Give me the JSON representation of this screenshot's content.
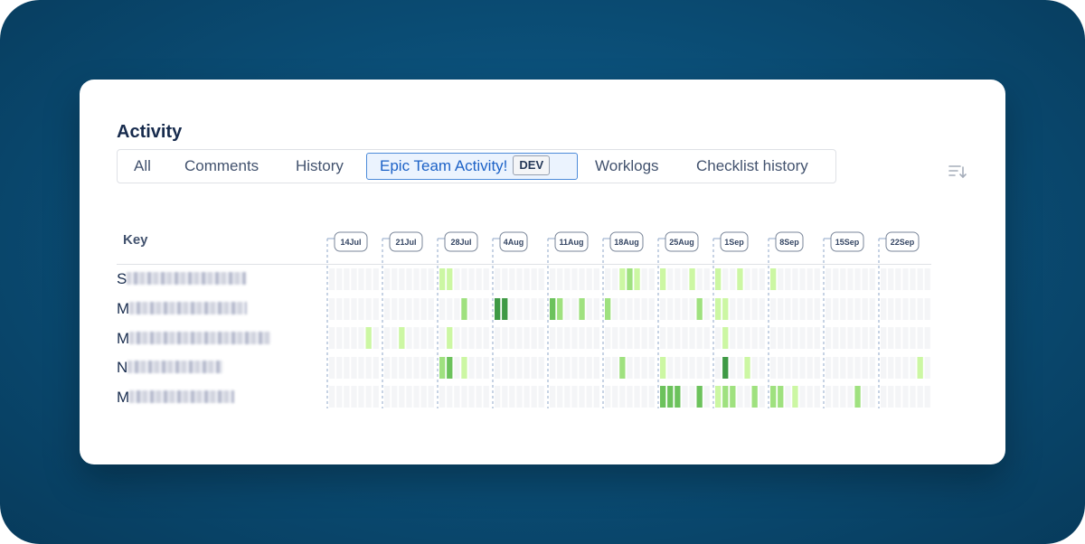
{
  "activity": {
    "title": "Activity",
    "tabs": [
      {
        "label": "All"
      },
      {
        "label": "Comments"
      },
      {
        "label": "History"
      },
      {
        "label": "Epic Team Activity!",
        "badge": "DEV",
        "active": true
      },
      {
        "label": "Worklogs"
      },
      {
        "label": "Checklist history"
      }
    ],
    "sort_icon": "sort-descending-icon"
  },
  "timeline": {
    "key_label": "Key",
    "weeks": [
      "14Jul",
      "21Jul",
      "28Jul",
      "4Aug",
      "11Aug",
      "18Aug",
      "25Aug",
      "1Sep",
      "8Sep",
      "15Sep",
      "22Sep"
    ],
    "rows": [
      {
        "initial": "S",
        "cells": [
          [
            2,
            0,
            1
          ],
          [
            2,
            1,
            1
          ],
          [
            5,
            2,
            1
          ],
          [
            5,
            3,
            2
          ],
          [
            5,
            4,
            1
          ],
          [
            6,
            0,
            1
          ],
          [
            6,
            4,
            1
          ],
          [
            7,
            0,
            1
          ],
          [
            7,
            3,
            1
          ],
          [
            8,
            0,
            1
          ]
        ]
      },
      {
        "initial": "M",
        "cells": [
          [
            2,
            3,
            2
          ],
          [
            3,
            0,
            4
          ],
          [
            3,
            1,
            4
          ],
          [
            4,
            0,
            3
          ],
          [
            4,
            1,
            2
          ],
          [
            4,
            4,
            2
          ],
          [
            5,
            0,
            2
          ],
          [
            6,
            5,
            2
          ],
          [
            7,
            0,
            1
          ],
          [
            7,
            1,
            1
          ]
        ]
      },
      {
        "initial": "M",
        "cells": [
          [
            0,
            5,
            1
          ],
          [
            1,
            2,
            1
          ],
          [
            2,
            1,
            1
          ],
          [
            7,
            1,
            1
          ]
        ]
      },
      {
        "initial": "N",
        "cells": [
          [
            2,
            0,
            2
          ],
          [
            2,
            1,
            3
          ],
          [
            2,
            3,
            1
          ],
          [
            5,
            2,
            2
          ],
          [
            6,
            0,
            1
          ],
          [
            7,
            1,
            4
          ],
          [
            7,
            4,
            1
          ],
          [
            10,
            5,
            1
          ]
        ]
      },
      {
        "initial": "M",
        "cells": [
          [
            6,
            0,
            3
          ],
          [
            6,
            1,
            3
          ],
          [
            6,
            2,
            3
          ],
          [
            6,
            5,
            3
          ],
          [
            7,
            0,
            1
          ],
          [
            7,
            1,
            2
          ],
          [
            7,
            2,
            2
          ],
          [
            7,
            5,
            2
          ],
          [
            8,
            0,
            2
          ],
          [
            8,
            1,
            2
          ],
          [
            8,
            3,
            1
          ],
          [
            9,
            4,
            2
          ]
        ]
      }
    ],
    "colors": {
      "empty": "#f4f5f7",
      "level1": "#ccf7a3",
      "level2": "#9fe17f",
      "level3": "#6cc25c",
      "level4": "#3f9a45",
      "divider": "#8fa7c9",
      "badge_border": "#7a8699"
    }
  }
}
